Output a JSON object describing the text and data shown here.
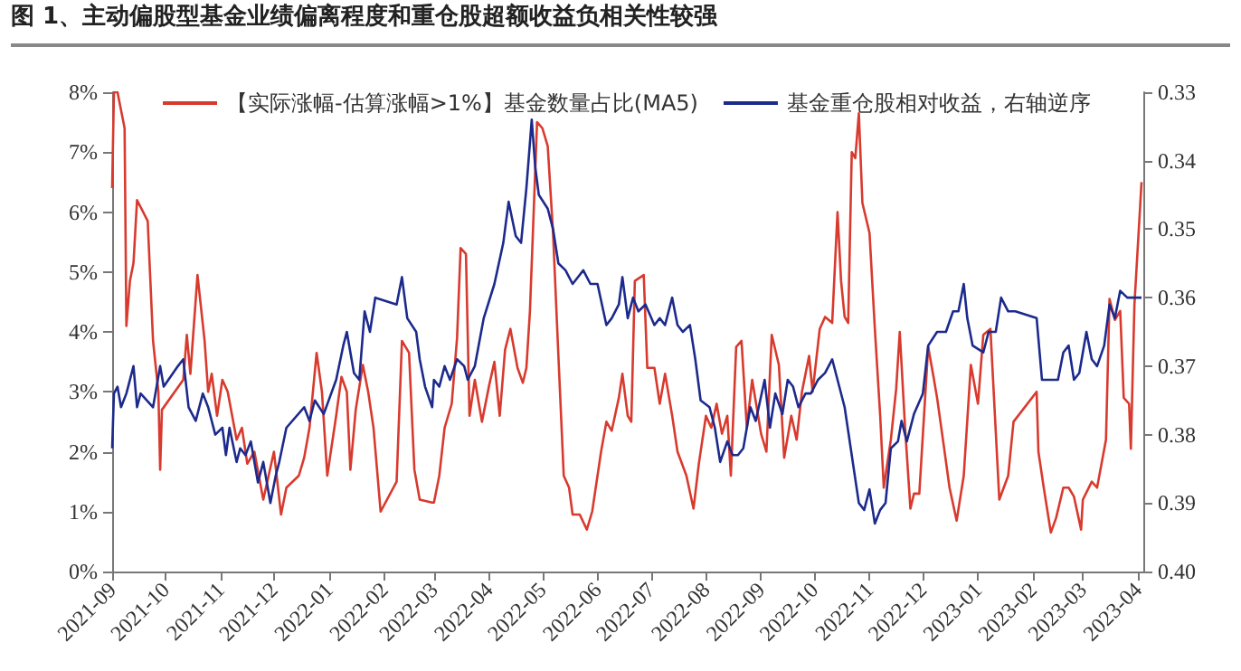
{
  "chart_data": {
    "type": "line",
    "title": "图 1、主动偏股型基金业绩偏离程度和重仓股超额收益负相关性较强",
    "xlim": [
      "2021-09-01",
      "2023-04-04"
    ],
    "xticks": [
      {
        "value": "2021-09-01",
        "label": "2021-09"
      },
      {
        "value": "2021-10-01",
        "label": "2021-10"
      },
      {
        "value": "2021-11-01",
        "label": "2021-11"
      },
      {
        "value": "2021-12-01",
        "label": "2021-12"
      },
      {
        "value": "2022-01-01",
        "label": "2022-01"
      },
      {
        "value": "2022-02-01",
        "label": "2022-02"
      },
      {
        "value": "2022-03-01",
        "label": "2022-03"
      },
      {
        "value": "2022-04-01",
        "label": "2022-04"
      },
      {
        "value": "2022-05-01",
        "label": "2022-05"
      },
      {
        "value": "2022-06-01",
        "label": "2022-06"
      },
      {
        "value": "2022-07-01",
        "label": "2022-07"
      },
      {
        "value": "2022-08-01",
        "label": "2022-08"
      },
      {
        "value": "2022-09-01",
        "label": "2022-09"
      },
      {
        "value": "2022-10-01",
        "label": "2022-10"
      },
      {
        "value": "2022-11-01",
        "label": "2022-11"
      },
      {
        "value": "2022-12-01",
        "label": "2022-12"
      },
      {
        "value": "2023-01-01",
        "label": "2023-01"
      },
      {
        "value": "2023-02-01",
        "label": "2023-02"
      },
      {
        "value": "2023-03-01",
        "label": "2023-03"
      },
      {
        "value": "2023-04-01",
        "label": "2023-04"
      }
    ],
    "ylim": [
      0,
      8
    ],
    "yticks": [
      {
        "value": 0,
        "label": "0%"
      },
      {
        "value": 1,
        "label": "1%"
      },
      {
        "value": 2,
        "label": "2%"
      },
      {
        "value": 3,
        "label": "3%"
      },
      {
        "value": 4,
        "label": "4%"
      },
      {
        "value": 5,
        "label": "5%"
      },
      {
        "value": 6,
        "label": "6%"
      },
      {
        "value": 7,
        "label": "7%"
      },
      {
        "value": 8,
        "label": "8%"
      }
    ],
    "y2lim": [
      0.4,
      0.33
    ],
    "y2ticks": [
      0.33,
      0.34,
      0.35,
      0.36,
      0.37,
      0.38,
      0.39,
      {
        "value": 0.4,
        "label": "0.40"
      }
    ],
    "legend": "top",
    "grid": false,
    "marker": "none",
    "line_style": "solid",
    "series": [
      {
        "name": "【实际涨幅-估算涨幅>1%】基金数量占比(MA5)",
        "color": "#d83a2e",
        "x": [
          "2021-09-01",
          "2021-09-02",
          "2021-09-04",
          "2021-09-08",
          "2021-09-09",
          "2021-09-11",
          "2021-09-13",
          "2021-09-15",
          "2021-09-21",
          "2021-09-24",
          "2021-09-27",
          "2021-09-28",
          "2021-09-29",
          "2021-10-11",
          "2021-10-13",
          "2021-10-15",
          "2021-10-19",
          "2021-10-23",
          "2021-10-25",
          "2021-10-27",
          "2021-10-30",
          "2021-11-02",
          "2021-11-05",
          "2021-11-10",
          "2021-11-13",
          "2021-11-16",
          "2021-11-20",
          "2021-11-25",
          "2021-12-01",
          "2021-12-05",
          "2021-12-08",
          "2021-12-15",
          "2021-12-18",
          "2021-12-21",
          "2021-12-25",
          "2021-12-28",
          "2021-12-31",
          "2022-01-05",
          "2022-01-08",
          "2022-01-11",
          "2022-01-13",
          "2022-01-16",
          "2022-01-20",
          "2022-01-23",
          "2022-01-26",
          "2022-01-30",
          "2022-02-08",
          "2022-02-11",
          "2022-02-15",
          "2022-02-18",
          "2022-02-21",
          "2022-02-28",
          "2022-03-01",
          "2022-03-04",
          "2022-03-07",
          "2022-03-11",
          "2022-03-14",
          "2022-03-16",
          "2022-03-19",
          "2022-03-21",
          "2022-03-24",
          "2022-03-28",
          "2022-04-01",
          "2022-04-04",
          "2022-04-07",
          "2022-04-10",
          "2022-04-13",
          "2022-04-17",
          "2022-04-20",
          "2022-04-22",
          "2022-04-24",
          "2022-04-28",
          "2022-05-01",
          "2022-05-04",
          "2022-05-07",
          "2022-05-10",
          "2022-05-13",
          "2022-05-16",
          "2022-05-18",
          "2022-05-22",
          "2022-05-26",
          "2022-05-29",
          "2022-06-03",
          "2022-06-06",
          "2022-06-09",
          "2022-06-13",
          "2022-06-15",
          "2022-06-18",
          "2022-06-20",
          "2022-06-22",
          "2022-06-27",
          "2022-06-29",
          "2022-07-03",
          "2022-07-06",
          "2022-07-09",
          "2022-07-13",
          "2022-07-16",
          "2022-07-21",
          "2022-07-25",
          "2022-07-28",
          "2022-08-01",
          "2022-08-04",
          "2022-08-07",
          "2022-08-10",
          "2022-08-13",
          "2022-08-15",
          "2022-08-18",
          "2022-08-21",
          "2022-08-24",
          "2022-08-27",
          "2022-09-01",
          "2022-09-04",
          "2022-09-07",
          "2022-09-11",
          "2022-09-14",
          "2022-09-18",
          "2022-09-21",
          "2022-09-24",
          "2022-09-28",
          "2022-09-30",
          "2022-10-04",
          "2022-10-07",
          "2022-10-11",
          "2022-10-14",
          "2022-10-16",
          "2022-10-18",
          "2022-10-20",
          "2022-10-22",
          "2022-10-24",
          "2022-10-26",
          "2022-10-28",
          "2022-11-01",
          "2022-11-04",
          "2022-11-07",
          "2022-11-09",
          "2022-11-13",
          "2022-11-16",
          "2022-11-18",
          "2022-11-21",
          "2022-11-24",
          "2022-11-26",
          "2022-11-29",
          "2022-12-04",
          "2022-12-07",
          "2022-12-09",
          "2022-12-13",
          "2022-12-16",
          "2022-12-20",
          "2022-12-24",
          "2022-12-28",
          "2023-01-01",
          "2023-01-04",
          "2023-01-08",
          "2023-01-13",
          "2023-01-18",
          "2023-01-21",
          "2023-02-03",
          "2023-02-04",
          "2023-02-07",
          "2023-02-11",
          "2023-02-14",
          "2023-02-18",
          "2023-02-21",
          "2023-02-24",
          "2023-02-28",
          "2023-03-01",
          "2023-03-06",
          "2023-03-09",
          "2023-03-14",
          "2023-03-16",
          "2023-03-19",
          "2023-03-22",
          "2023-03-24",
          "2023-03-27",
          "2023-03-28",
          "2023-03-30",
          "2023-04-03"
        ],
        "values": [
          6.4,
          8.0,
          8.0,
          7.4,
          4.1,
          4.85,
          5.15,
          6.2,
          5.85,
          3.85,
          3.0,
          1.7,
          2.7,
          3.2,
          3.95,
          3.3,
          4.95,
          3.85,
          3.0,
          3.3,
          2.6,
          3.2,
          3.0,
          2.2,
          2.4,
          1.8,
          2.0,
          1.2,
          2.0,
          0.95,
          1.4,
          1.6,
          1.9,
          2.4,
          3.65,
          3.0,
          1.6,
          2.6,
          3.25,
          3.0,
          1.7,
          2.7,
          3.45,
          3.0,
          2.4,
          1.0,
          1.5,
          3.85,
          3.65,
          1.7,
          1.2,
          1.15,
          1.15,
          1.6,
          2.4,
          2.8,
          3.9,
          5.4,
          5.3,
          2.6,
          3.2,
          2.5,
          3.1,
          3.5,
          2.6,
          3.7,
          4.05,
          3.4,
          3.15,
          3.4,
          4.35,
          7.5,
          7.4,
          7.1,
          5.65,
          3.6,
          1.6,
          1.4,
          0.95,
          0.95,
          0.7,
          1.0,
          2.0,
          2.5,
          2.35,
          2.9,
          3.3,
          2.6,
          2.5,
          4.85,
          4.95,
          3.4,
          3.4,
          2.8,
          3.3,
          2.6,
          2.0,
          1.6,
          1.05,
          1.8,
          2.6,
          2.4,
          2.8,
          2.3,
          2.6,
          1.6,
          3.75,
          3.85,
          2.4,
          3.2,
          2.3,
          2.0,
          3.95,
          3.45,
          1.9,
          2.6,
          2.2,
          3.0,
          3.6,
          3.0,
          4.05,
          4.25,
          4.15,
          6.0,
          4.85,
          4.25,
          4.15,
          7.0,
          6.9,
          7.65,
          6.15,
          5.65,
          4.05,
          2.6,
          1.4,
          2.2,
          3.05,
          4.0,
          2.4,
          1.05,
          1.3,
          1.3,
          3.75,
          3.25,
          2.9,
          2.05,
          1.4,
          0.85,
          1.6,
          3.45,
          2.8,
          3.95,
          4.05,
          1.2,
          1.6,
          2.5,
          3.0,
          2.0,
          1.4,
          0.65,
          0.9,
          1.4,
          1.4,
          1.25,
          0.7,
          1.2,
          1.5,
          1.4,
          2.2,
          4.55,
          4.2,
          4.35,
          2.9,
          2.8,
          2.05,
          4.45,
          6.5
        ]
      },
      {
        "name": "基金重仓股相对收益，右轴逆序",
        "color": "#1c2a8c",
        "axis": "y2",
        "x": [
          "2021-09-01",
          "2021-09-02",
          "2021-09-04",
          "2021-09-06",
          "2021-09-09",
          "2021-09-13",
          "2021-09-15",
          "2021-09-17",
          "2021-09-24",
          "2021-09-28",
          "2021-09-30",
          "2021-10-08",
          "2021-10-11",
          "2021-10-14",
          "2021-10-18",
          "2021-10-22",
          "2021-10-25",
          "2021-10-29",
          "2021-11-02",
          "2021-11-04",
          "2021-11-06",
          "2021-11-10",
          "2021-11-12",
          "2021-11-15",
          "2021-11-18",
          "2021-11-22",
          "2021-11-25",
          "2021-11-29",
          "2021-12-02",
          "2021-12-04",
          "2021-12-08",
          "2021-12-18",
          "2021-12-21",
          "2021-12-24",
          "2021-12-29",
          "2022-01-05",
          "2022-01-09",
          "2022-01-11",
          "2022-01-15",
          "2022-01-18",
          "2022-01-21",
          "2022-01-24",
          "2022-01-27",
          "2022-02-08",
          "2022-02-11",
          "2022-02-14",
          "2022-02-19",
          "2022-02-21",
          "2022-02-24",
          "2022-02-28",
          "2022-03-01",
          "2022-03-04",
          "2022-03-07",
          "2022-03-10",
          "2022-03-14",
          "2022-03-18",
          "2022-03-20",
          "2022-03-24",
          "2022-03-29",
          "2022-04-04",
          "2022-04-09",
          "2022-04-12",
          "2022-04-16",
          "2022-04-19",
          "2022-04-22",
          "2022-04-25",
          "2022-04-27",
          "2022-04-29",
          "2022-05-04",
          "2022-05-07",
          "2022-05-10",
          "2022-05-14",
          "2022-05-18",
          "2022-05-21",
          "2022-05-24",
          "2022-05-28",
          "2022-06-01",
          "2022-06-06",
          "2022-06-09",
          "2022-06-13",
          "2022-06-15",
          "2022-06-18",
          "2022-06-21",
          "2022-06-24",
          "2022-06-28",
          "2022-07-03",
          "2022-07-06",
          "2022-07-09",
          "2022-07-13",
          "2022-07-16",
          "2022-07-19",
          "2022-07-23",
          "2022-07-26",
          "2022-07-29",
          "2022-08-03",
          "2022-08-06",
          "2022-08-09",
          "2022-08-13",
          "2022-08-16",
          "2022-08-19",
          "2022-08-22",
          "2022-08-26",
          "2022-08-29",
          "2022-09-03",
          "2022-09-06",
          "2022-09-09",
          "2022-09-13",
          "2022-09-16",
          "2022-09-19",
          "2022-09-22",
          "2022-09-26",
          "2022-09-29",
          "2022-10-03",
          "2022-10-07",
          "2022-10-11",
          "2022-10-18",
          "2022-10-22",
          "2022-10-26",
          "2022-10-29",
          "2022-11-01",
          "2022-11-04",
          "2022-11-07",
          "2022-11-10",
          "2022-11-13",
          "2022-11-17",
          "2022-11-19",
          "2022-11-22",
          "2022-11-26",
          "2022-12-01",
          "2022-12-04",
          "2022-12-09",
          "2022-12-14",
          "2022-12-18",
          "2022-12-21",
          "2022-12-24",
          "2022-12-26",
          "2022-12-29",
          "2023-01-04",
          "2023-01-07",
          "2023-01-11",
          "2023-01-14",
          "2023-01-18",
          "2023-01-22",
          "2023-02-03",
          "2023-02-06",
          "2023-02-10",
          "2023-02-15",
          "2023-02-18",
          "2023-02-21",
          "2023-02-24",
          "2023-02-27",
          "2023-03-03",
          "2023-03-06",
          "2023-03-09",
          "2023-03-13",
          "2023-03-16",
          "2023-03-19",
          "2023-03-22",
          "2023-03-26",
          "2023-04-03"
        ],
        "values": [
          0.382,
          0.374,
          0.373,
          0.376,
          0.374,
          0.37,
          0.376,
          0.374,
          0.376,
          0.37,
          0.373,
          0.37,
          0.369,
          0.376,
          0.378,
          0.374,
          0.376,
          0.38,
          0.379,
          0.383,
          0.379,
          0.384,
          0.382,
          0.383,
          0.381,
          0.387,
          0.384,
          0.39,
          0.386,
          0.384,
          0.379,
          0.376,
          0.378,
          0.375,
          0.377,
          0.372,
          0.367,
          0.365,
          0.371,
          0.372,
          0.362,
          0.365,
          0.36,
          0.361,
          0.357,
          0.363,
          0.365,
          0.369,
          0.373,
          0.376,
          0.372,
          0.373,
          0.37,
          0.372,
          0.369,
          0.37,
          0.372,
          0.37,
          0.363,
          0.358,
          0.352,
          0.346,
          0.351,
          0.352,
          0.344,
          0.334,
          0.341,
          0.345,
          0.347,
          0.35,
          0.355,
          0.356,
          0.358,
          0.357,
          0.356,
          0.358,
          0.358,
          0.364,
          0.363,
          0.361,
          0.357,
          0.363,
          0.36,
          0.362,
          0.361,
          0.364,
          0.363,
          0.364,
          0.36,
          0.364,
          0.365,
          0.364,
          0.369,
          0.375,
          0.376,
          0.379,
          0.384,
          0.381,
          0.383,
          0.383,
          0.382,
          0.376,
          0.378,
          0.372,
          0.379,
          0.374,
          0.377,
          0.372,
          0.373,
          0.376,
          0.374,
          0.374,
          0.372,
          0.371,
          0.369,
          0.376,
          0.383,
          0.39,
          0.391,
          0.388,
          0.393,
          0.391,
          0.39,
          0.382,
          0.381,
          0.378,
          0.381,
          0.377,
          0.374,
          0.367,
          0.365,
          0.365,
          0.362,
          0.362,
          0.358,
          0.363,
          0.367,
          0.368,
          0.365,
          0.365,
          0.36,
          0.362,
          0.362,
          0.363,
          0.372,
          0.372,
          0.372,
          0.368,
          0.367,
          0.372,
          0.371,
          0.365,
          0.369,
          0.37,
          0.367,
          0.361,
          0.363,
          0.359,
          0.36,
          0.36
        ]
      }
    ]
  }
}
